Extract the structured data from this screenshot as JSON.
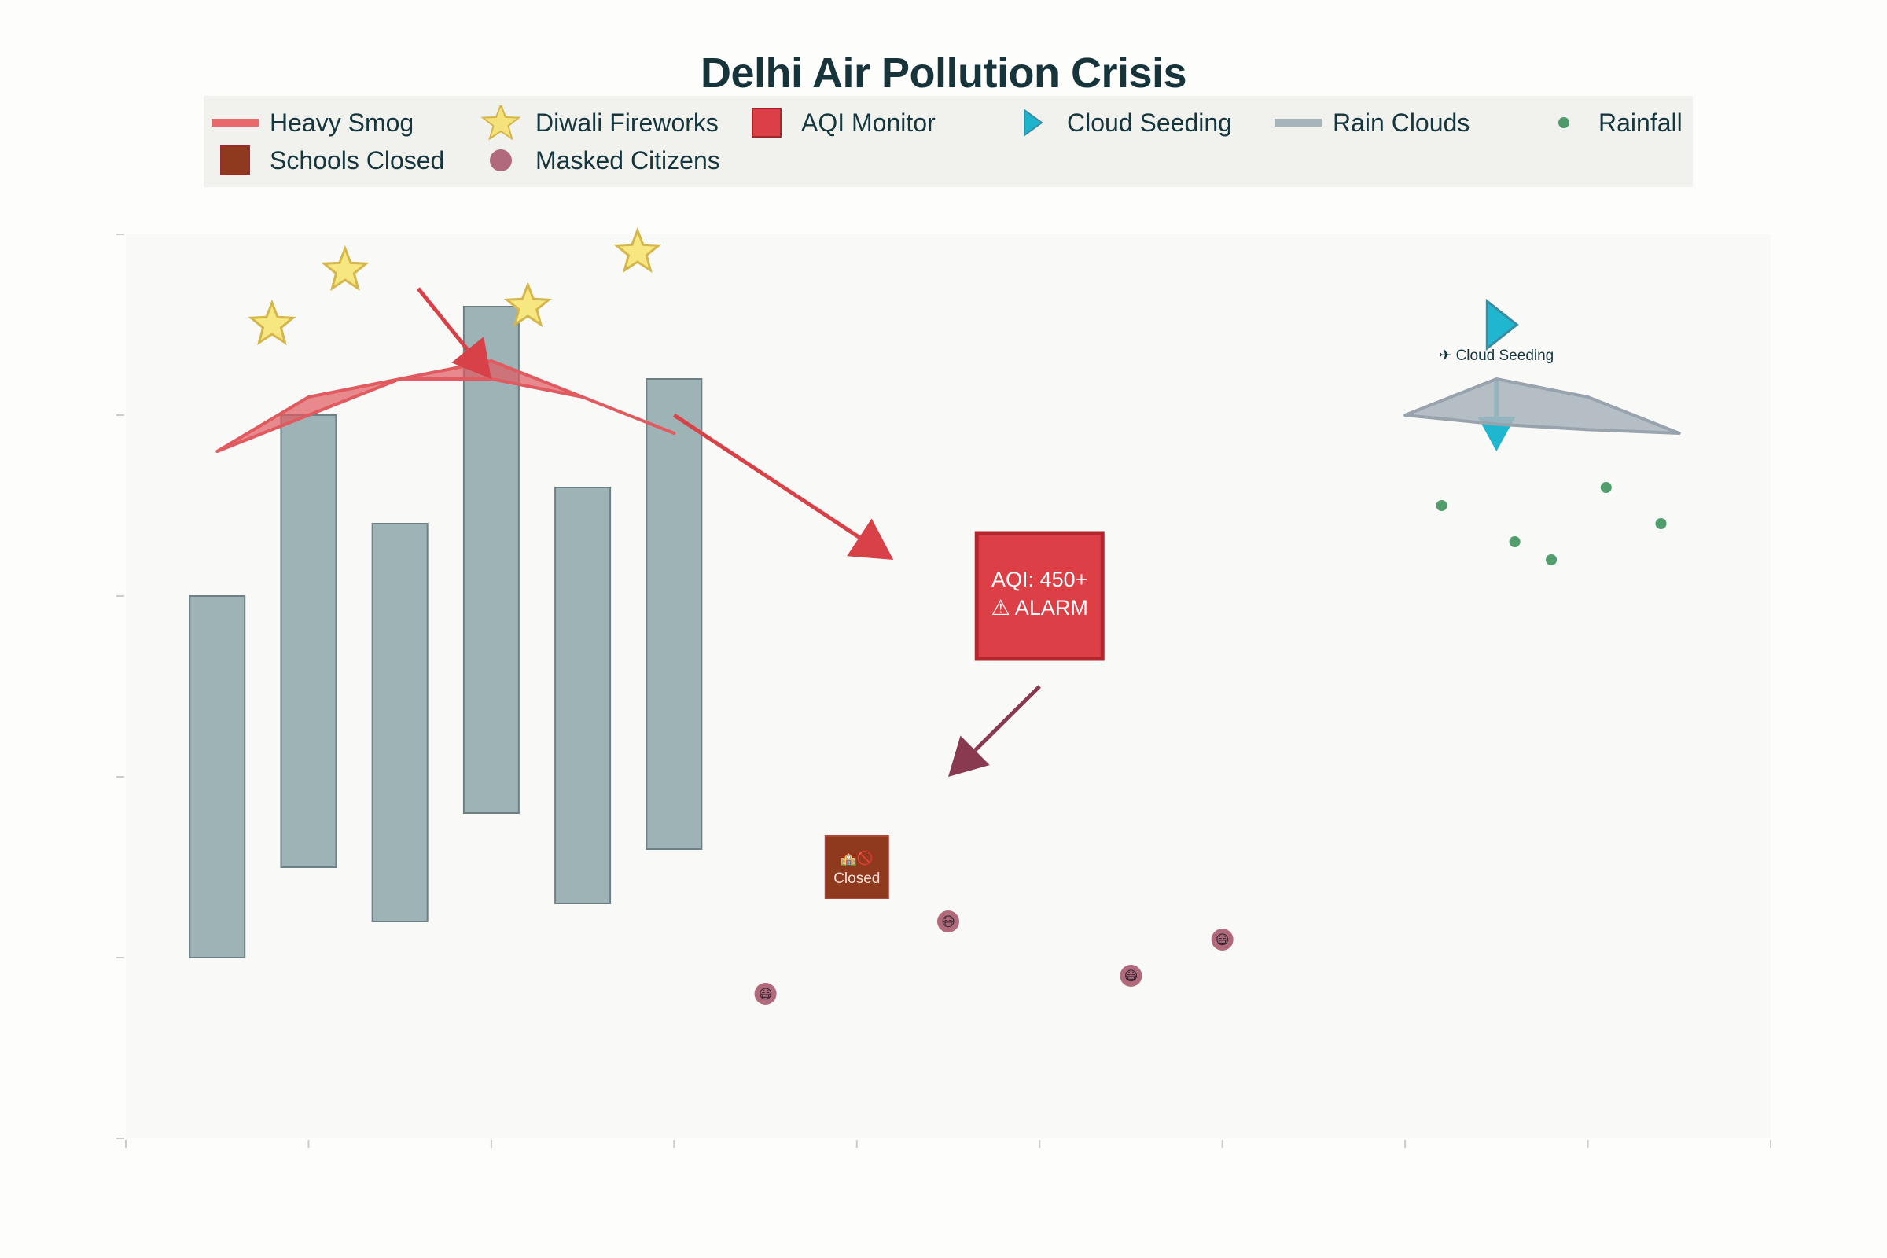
{
  "title": "Delhi Air Pollution Crisis",
  "legend": [
    {
      "label": "Heavy Smog",
      "symbol": "line",
      "color": "#e8686c"
    },
    {
      "label": "Diwali Fireworks",
      "symbol": "star",
      "color": "#f5e27a"
    },
    {
      "label": "AQI Monitor",
      "symbol": "square",
      "color": "#dc4046"
    },
    {
      "label": "Cloud Seeding",
      "symbol": "triangle-right",
      "color": "#1eb4cc"
    },
    {
      "label": "Rain Clouds",
      "symbol": "line",
      "color": "#a8b4bc"
    },
    {
      "label": "Rainfall",
      "symbol": "circle-small",
      "color": "#4f9a6a"
    },
    {
      "label": "Schools Closed",
      "symbol": "square",
      "color": "#8f3a1e"
    },
    {
      "label": "Masked Citizens",
      "symbol": "circle",
      "color": "#b06a7c"
    }
  ],
  "annotations": {
    "aqi_box": {
      "line1": "AQI: 450+",
      "line2": "⚠ ALARM"
    },
    "schools_box": {
      "line1": "🏫🚫",
      "line2": "Closed"
    },
    "cloud_seeding_label": "✈ Cloud Seeding",
    "mask_glyph": "😷"
  },
  "colors": {
    "bars": "#9db3b6",
    "bar_edge": "#6c8085",
    "smog": "#e05a60",
    "arrow_red": "#d94148",
    "arrow_maroon": "#8a3a50",
    "cloud": "#a9b4bb",
    "seeding": "#1fb6cf",
    "rain": "#529d6c",
    "mask": "#b06a7c"
  },
  "chart_data": {
    "type": "bar",
    "xlim": [
      0,
      9
    ],
    "ylim": [
      0,
      500
    ],
    "bars": [
      {
        "x": 0.5,
        "low": 100,
        "high": 300
      },
      {
        "x": 1.0,
        "low": 150,
        "high": 400
      },
      {
        "x": 1.5,
        "low": 120,
        "high": 340
      },
      {
        "x": 2.0,
        "low": 180,
        "high": 460
      },
      {
        "x": 2.5,
        "low": 130,
        "high": 360
      },
      {
        "x": 3.0,
        "low": 160,
        "high": 420
      }
    ],
    "series": [
      {
        "name": "Heavy Smog",
        "type": "area",
        "x": [
          0.5,
          1.0,
          1.5,
          2.0,
          2.5,
          3.0
        ],
        "upper": [
          380,
          410,
          420,
          430,
          410,
          390
        ],
        "lower": [
          380,
          400,
          420,
          420,
          410,
          390
        ]
      },
      {
        "name": "Diwali Fireworks",
        "type": "scatter",
        "x": [
          0.8,
          1.2,
          2.2,
          2.8
        ],
        "y": [
          450,
          480,
          460,
          490
        ]
      },
      {
        "name": "AQI Monitor",
        "type": "marker",
        "x": [
          5.0
        ],
        "y": [
          300
        ]
      },
      {
        "name": "Cloud Seeding",
        "type": "marker",
        "x": [
          7.5
        ],
        "y": [
          450
        ]
      },
      {
        "name": "Rain Clouds",
        "type": "area",
        "x": [
          7.0,
          7.5,
          8.0,
          8.5
        ],
        "upper": [
          400,
          420,
          410,
          390
        ],
        "lower": [
          400,
          395,
          392,
          390
        ]
      },
      {
        "name": "Rainfall",
        "type": "scatter",
        "x": [
          7.2,
          7.6,
          7.8,
          8.1,
          8.4
        ],
        "y": [
          350,
          330,
          320,
          360,
          340
        ]
      },
      {
        "name": "Schools Closed",
        "type": "marker",
        "x": [
          4.0
        ],
        "y": [
          150
        ]
      },
      {
        "name": "Masked Citizens",
        "type": "scatter",
        "x": [
          3.5,
          4.5,
          5.5,
          6.0
        ],
        "y": [
          80,
          120,
          90,
          110
        ]
      }
    ],
    "arrows": [
      {
        "from": [
          1.6,
          470
        ],
        "to": [
          2.0,
          420
        ],
        "color": "red"
      },
      {
        "from": [
          3.0,
          400
        ],
        "to": [
          4.2,
          320
        ],
        "color": "red"
      },
      {
        "from": [
          5.0,
          250
        ],
        "to": [
          4.5,
          200
        ],
        "color": "maroon"
      },
      {
        "from": [
          7.5,
          420
        ],
        "to": [
          7.5,
          380
        ],
        "color": "teal"
      }
    ],
    "xlabel": "",
    "ylabel": "",
    "grid": false,
    "legend_position": "top"
  }
}
